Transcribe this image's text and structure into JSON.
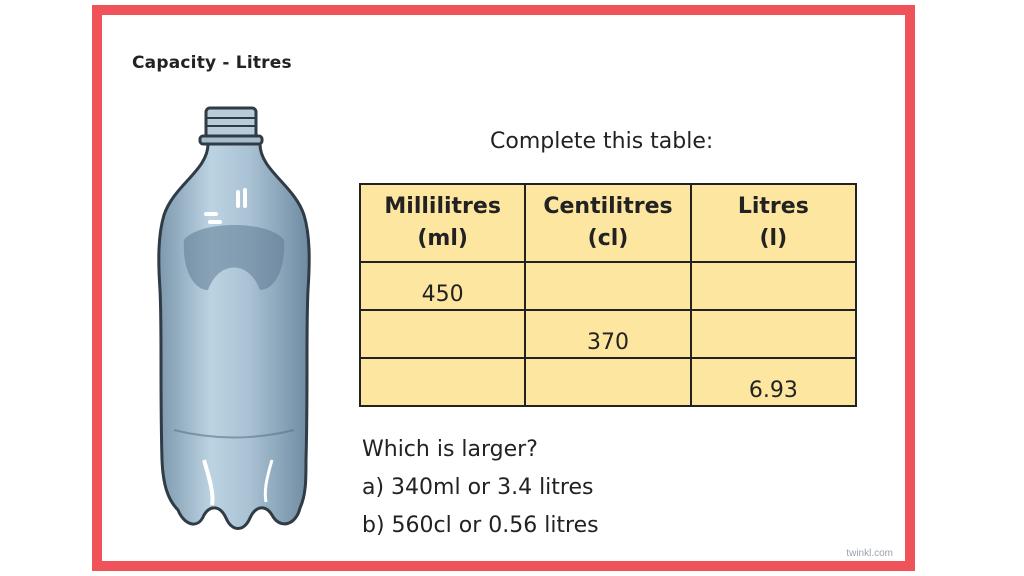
{
  "title": "Capacity - Litres",
  "instruction": "Complete this table:",
  "table": {
    "headers": [
      {
        "name": "Millilitres",
        "unit": "(ml)"
      },
      {
        "name": "Centilitres",
        "unit": "(cl)"
      },
      {
        "name": "Litres",
        "unit": "(l)"
      }
    ],
    "rows": [
      [
        "450",
        "",
        ""
      ],
      [
        "",
        "370",
        ""
      ],
      [
        "",
        "",
        "6.93"
      ]
    ]
  },
  "questions": [
    "Which is larger?",
    "a) 340ml or 3.4 litres",
    "b) 560cl or 0.56 litres"
  ],
  "brand": "twinkl.com",
  "colors": {
    "border": "#f0525a",
    "table_fill": "#fde6a0"
  },
  "icons": {
    "bottle": "plastic-bottle-illustration"
  }
}
